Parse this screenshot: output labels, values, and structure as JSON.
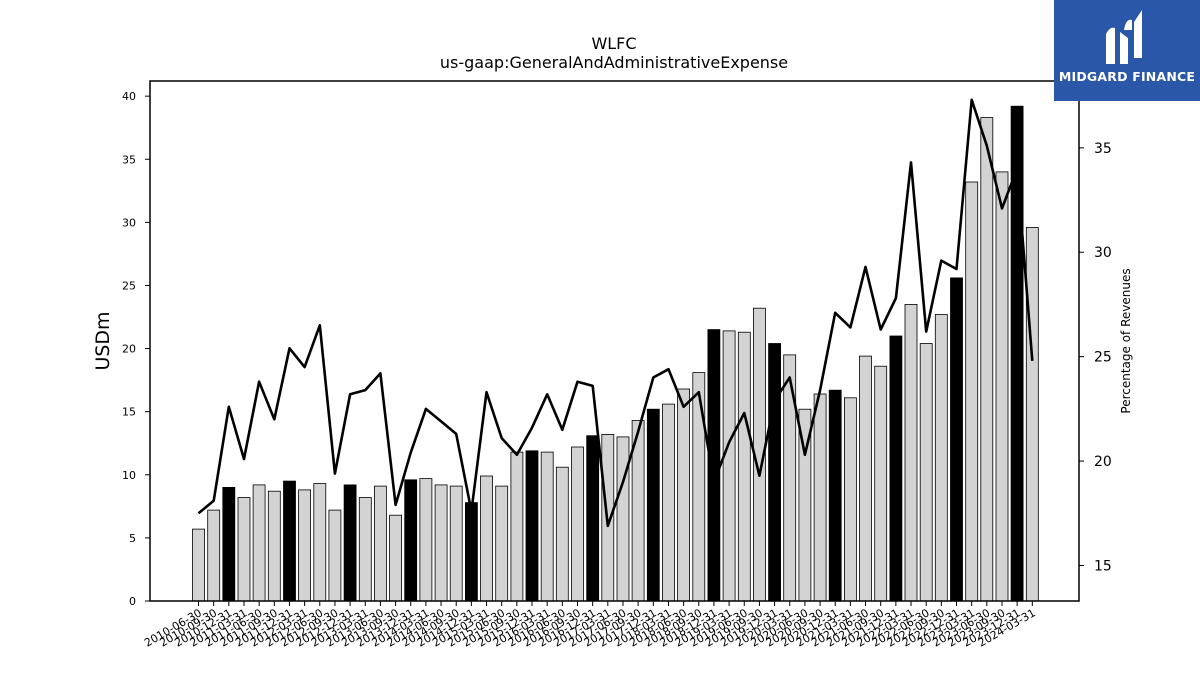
{
  "chart_data": {
    "type": "bar",
    "title": "WLFC",
    "subtitle": "us-gaap:GeneralAndAdministrativeExpense",
    "ylabel": "USDm",
    "y2label": "Percentage of Revenues",
    "ylim": [
      0,
      41.2
    ],
    "y2lim": [
      13.3,
      38.2
    ],
    "yticks": [
      0,
      5,
      10,
      15,
      20,
      25,
      30,
      35,
      40
    ],
    "y2ticks": [
      15,
      20,
      25,
      30,
      35
    ],
    "categories": [
      "2010-06-30",
      "2010-09-30",
      "2010-12-31",
      "2011-03-31",
      "2011-06-30",
      "2011-09-30",
      "2011-12-31",
      "2012-03-31",
      "2012-06-30",
      "2012-09-30",
      "2012-12-31",
      "2013-03-31",
      "2013-06-30",
      "2013-09-30",
      "2013-12-31",
      "2014-03-31",
      "2014-06-30",
      "2014-09-30",
      "2014-12-31",
      "2015-03-31",
      "2015-06-30",
      "2015-09-30",
      "2015-12-31",
      "2016-03-31",
      "2016-06-30",
      "2016-09-30",
      "2016-12-31",
      "2017-03-31",
      "2017-06-30",
      "2017-09-30",
      "2017-12-31",
      "2018-03-31",
      "2018-06-30",
      "2018-09-30",
      "2018-12-31",
      "2019-03-31",
      "2019-06-30",
      "2019-09-30",
      "2019-12-31",
      "2020-03-31",
      "2020-06-30",
      "2020-09-30",
      "2020-12-31",
      "2021-03-31",
      "2021-06-30",
      "2021-09-30",
      "2021-12-31",
      "2022-03-31",
      "2022-06-30",
      "2022-09-30",
      "2022-12-31",
      "2023-03-31",
      "2023-06-30",
      "2023-09-30",
      "2023-12-31",
      "2024-03-31"
    ],
    "series": [
      {
        "name": "",
        "kind": "bar",
        "values": [
          5.7,
          7.2,
          9.0,
          8.2,
          9.2,
          8.7,
          9.5,
          8.8,
          9.3,
          7.2,
          9.2,
          8.2,
          9.1,
          6.8,
          9.6,
          9.7,
          9.2,
          9.1,
          7.8,
          9.9,
          9.1,
          11.8,
          11.9,
          11.8,
          10.6,
          12.2,
          13.1,
          13.2,
          13.0,
          14.3,
          15.2,
          15.6,
          16.8,
          18.1,
          21.5,
          21.4,
          21.3,
          23.2,
          20.4,
          19.5,
          15.2,
          16.4,
          16.7,
          16.1,
          19.4,
          18.6,
          21.0,
          23.5,
          20.4,
          22.7,
          25.6,
          33.2,
          38.3,
          34.0,
          39.2,
          29.6
        ],
        "highlight_color": "#000000",
        "base_color": "#d3d3d3"
      },
      {
        "name": "",
        "kind": "line",
        "axis": "right",
        "values": [
          17.5,
          18.1,
          22.6,
          20.1,
          23.8,
          22.0,
          25.4,
          24.5,
          26.5,
          19.4,
          23.2,
          23.4,
          24.2,
          17.9,
          20.4,
          22.5,
          21.9,
          21.3,
          17.6,
          23.3,
          21.1,
          20.3,
          21.6,
          23.2,
          21.5,
          23.8,
          23.6,
          16.9,
          19.0,
          21.4,
          24.0,
          24.4,
          22.6,
          23.3,
          19.0,
          20.9,
          22.3,
          19.3,
          22.9,
          24.0,
          20.3,
          23.4,
          27.1,
          26.4,
          29.3,
          26.3,
          27.8,
          34.3,
          26.2,
          29.6,
          29.2,
          37.3,
          35.1,
          32.1,
          34.0,
          24.8
        ]
      }
    ],
    "highlight_indices": [
      2,
      6,
      10,
      14,
      18,
      22,
      26,
      30,
      34,
      38,
      42,
      46,
      50,
      54
    ],
    "grid": false,
    "legend": "none"
  },
  "logo": {
    "text": "MIDGARD FINANCE",
    "icon": "midgard-logo-icon",
    "color": "#2b57a8"
  }
}
